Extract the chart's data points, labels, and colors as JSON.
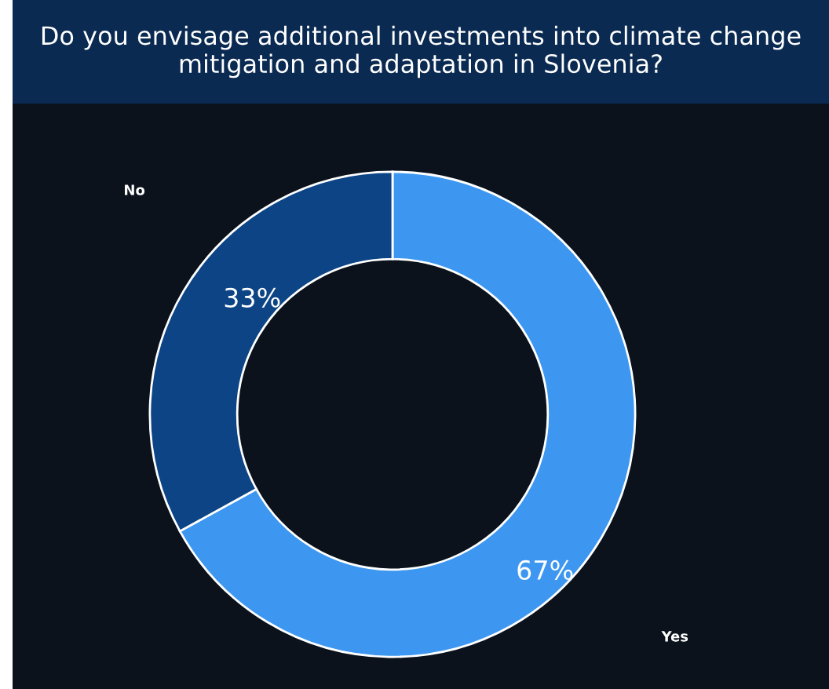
{
  "chart_data": {
    "type": "donut",
    "title": "Do you envisage additional investments into climate change mitigation and adaptation in Slovenia?",
    "categories": [
      "Yes",
      "No"
    ],
    "values": [
      67,
      33
    ],
    "colors": [
      "#3d97f0",
      "#0c4485"
    ],
    "value_labels": [
      "67%",
      "33%"
    ],
    "legend": false
  }
}
